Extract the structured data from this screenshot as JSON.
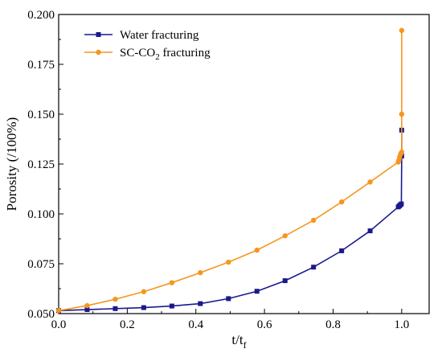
{
  "chart_data": {
    "type": "line",
    "xlabel_main": "t/t",
    "xlabel_sub": "f",
    "ylabel": "Porosity (/100%)",
    "xlim": [
      0.0,
      1.08
    ],
    "ylim": [
      0.05,
      0.2
    ],
    "xticks": [
      0.0,
      0.2,
      0.4,
      0.6,
      0.8,
      1.0
    ],
    "xtick_labels": [
      "0.0",
      "0.2",
      "0.4",
      "0.6",
      "0.8",
      "1.0"
    ],
    "yticks": [
      0.05,
      0.075,
      0.1,
      0.125,
      0.15,
      0.175,
      0.2
    ],
    "ytick_labels": [
      "0.050",
      "0.075",
      "0.100",
      "0.125",
      "0.150",
      "0.175",
      "0.200"
    ],
    "legend_position": "top-left",
    "grid": false,
    "series": [
      {
        "name_parts": [
          "Water fracturing"
        ],
        "color": "#1a1a8c",
        "marker": "square",
        "x": [
          0.0,
          0.083,
          0.165,
          0.248,
          0.33,
          0.413,
          0.495,
          0.578,
          0.66,
          0.743,
          0.825,
          0.908,
          0.99,
          0.993,
          0.996,
          0.999,
          1.0,
          1.0
        ],
        "y": [
          0.0515,
          0.052,
          0.0525,
          0.053,
          0.0538,
          0.055,
          0.0575,
          0.0612,
          0.0665,
          0.0733,
          0.0815,
          0.0915,
          0.1035,
          0.104,
          0.1045,
          0.105,
          0.129,
          0.142
        ]
      },
      {
        "name_parts": [
          "SC-CO",
          "2",
          " fracturing"
        ],
        "color": "#f5961e",
        "marker": "circle",
        "x": [
          0.0,
          0.083,
          0.165,
          0.248,
          0.33,
          0.413,
          0.495,
          0.578,
          0.66,
          0.743,
          0.825,
          0.908,
          0.99,
          0.992,
          0.994,
          0.997,
          1.0,
          1.0,
          1.0
        ],
        "y": [
          0.0515,
          0.054,
          0.0572,
          0.061,
          0.0655,
          0.0705,
          0.0758,
          0.0818,
          0.089,
          0.0968,
          0.106,
          0.116,
          0.126,
          0.127,
          0.1285,
          0.13,
          0.131,
          0.15,
          0.192
        ]
      }
    ]
  }
}
